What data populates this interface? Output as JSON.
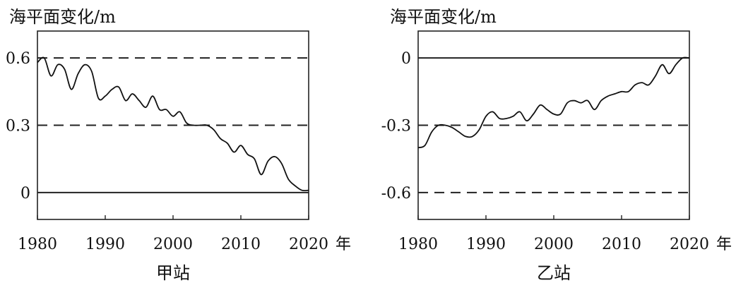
{
  "chart_data": [
    {
      "type": "line",
      "title": "甲站",
      "ylabel": "海平面变化/m",
      "xlabel": "年",
      "xlim": [
        1980,
        2020
      ],
      "ylim": [
        -0.12,
        0.72
      ],
      "x_ticks": [
        1980,
        1990,
        2000,
        2010,
        2020
      ],
      "x_tick_labels": [
        "1980",
        "1990",
        "2000",
        "2010",
        "2020"
      ],
      "y_ticks": [
        0.6,
        0.3,
        0
      ],
      "y_tick_labels": [
        "0.6",
        "0.3",
        "0"
      ],
      "reference_lines": [
        {
          "y": 0.6,
          "style": "dashed"
        },
        {
          "y": 0.3,
          "style": "dashed"
        },
        {
          "y": 0,
          "style": "solid"
        }
      ],
      "series": [
        {
          "x": [
            1980,
            1981,
            1982,
            1983,
            1984,
            1985,
            1986,
            1987,
            1988,
            1989,
            1990,
            1991,
            1992,
            1993,
            1994,
            1995,
            1996,
            1997,
            1998,
            1999,
            2000,
            2001,
            2002,
            2003,
            2004,
            2005,
            2006,
            2007,
            2008,
            2009,
            2010,
            2011,
            2012,
            2013,
            2014,
            2015,
            2016,
            2017,
            2018,
            2019,
            2020
          ],
          "values": [
            0.58,
            0.6,
            0.52,
            0.57,
            0.55,
            0.46,
            0.53,
            0.57,
            0.54,
            0.42,
            0.43,
            0.46,
            0.47,
            0.41,
            0.44,
            0.41,
            0.38,
            0.43,
            0.37,
            0.37,
            0.34,
            0.36,
            0.31,
            0.3,
            0.3,
            0.3,
            0.28,
            0.24,
            0.22,
            0.18,
            0.21,
            0.17,
            0.15,
            0.08,
            0.14,
            0.16,
            0.13,
            0.06,
            0.03,
            0.01,
            0.01
          ]
        }
      ]
    },
    {
      "type": "line",
      "title": "乙站",
      "ylabel": "海平面变化/m",
      "xlabel": "年",
      "xlim": [
        1980,
        2020
      ],
      "ylim": [
        -0.72,
        0.12
      ],
      "x_ticks": [
        1980,
        1990,
        2000,
        2010,
        2020
      ],
      "x_tick_labels": [
        "1980",
        "1990",
        "2000",
        "2010",
        "2020"
      ],
      "y_ticks": [
        0,
        -0.3,
        -0.6
      ],
      "y_tick_labels": [
        "0",
        "-0.3",
        "-0.6"
      ],
      "reference_lines": [
        {
          "y": 0,
          "style": "solid"
        },
        {
          "y": -0.3,
          "style": "dashed"
        },
        {
          "y": -0.6,
          "style": "dashed"
        }
      ],
      "series": [
        {
          "x": [
            1980,
            1981,
            1982,
            1983,
            1984,
            1985,
            1986,
            1987,
            1988,
            1989,
            1990,
            1991,
            1992,
            1993,
            1994,
            1995,
            1996,
            1997,
            1998,
            1999,
            2000,
            2001,
            2002,
            2003,
            2004,
            2005,
            2006,
            2007,
            2008,
            2009,
            2010,
            2011,
            2012,
            2013,
            2014,
            2015,
            2016,
            2017,
            2018,
            2019,
            2020
          ],
          "values": [
            -0.4,
            -0.39,
            -0.33,
            -0.3,
            -0.3,
            -0.31,
            -0.33,
            -0.35,
            -0.35,
            -0.32,
            -0.26,
            -0.24,
            -0.27,
            -0.27,
            -0.26,
            -0.24,
            -0.28,
            -0.25,
            -0.21,
            -0.23,
            -0.25,
            -0.25,
            -0.2,
            -0.19,
            -0.2,
            -0.19,
            -0.23,
            -0.19,
            -0.17,
            -0.16,
            -0.15,
            -0.15,
            -0.12,
            -0.11,
            -0.12,
            -0.08,
            -0.03,
            -0.07,
            -0.03,
            0,
            0
          ]
        }
      ]
    }
  ]
}
